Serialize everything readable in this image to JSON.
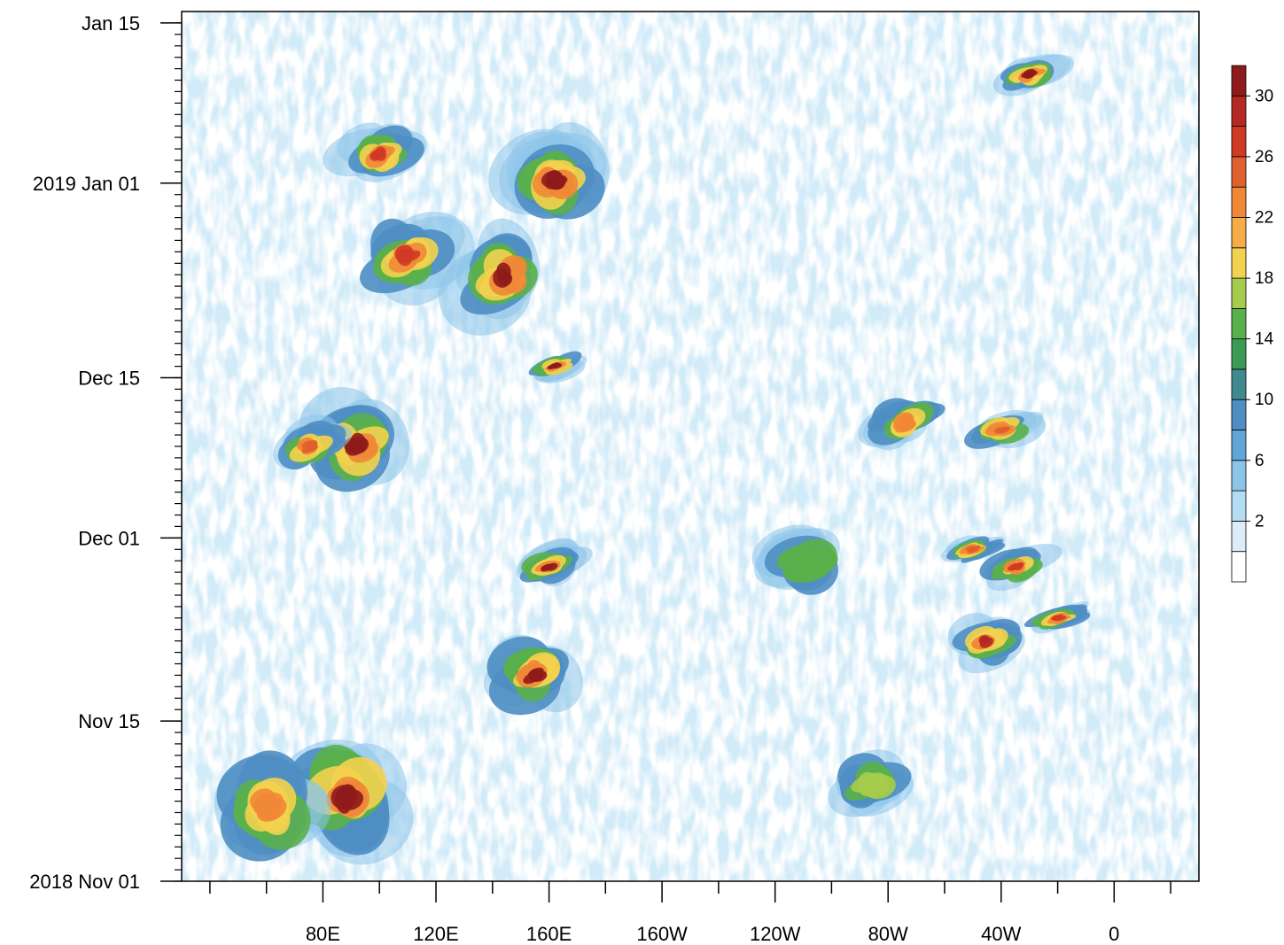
{
  "chart_data": {
    "type": "heatmap",
    "title": "",
    "xlabel": "",
    "ylabel": "",
    "x_ticks": [
      "80E",
      "120E",
      "160E",
      "160W",
      "120W",
      "80W",
      "40W",
      "0"
    ],
    "y_ticks": [
      "2018 Nov 01",
      "Nov 15",
      "Dec 01",
      "Dec 15",
      "2019 Jan 01",
      "Jan 15"
    ],
    "colorbar": {
      "labels": [
        "2",
        "6",
        "10",
        "14",
        "18",
        "22",
        "26",
        "30"
      ],
      "levels": [
        0,
        2,
        4,
        6,
        8,
        10,
        12,
        14,
        16,
        18,
        20,
        22,
        24,
        26,
        28,
        30,
        32
      ],
      "colors": [
        "#ffffff",
        "#dcedf8",
        "#b4dcf2",
        "#8cc5e9",
        "#62a6d8",
        "#4f8ec3",
        "#3f8a8f",
        "#3c9a57",
        "#5ab04a",
        "#a6cc4e",
        "#f3d24f",
        "#f5ad45",
        "#ef8837",
        "#e0602e",
        "#cf3a25",
        "#b22a23",
        "#8e1b1b"
      ]
    },
    "bands": [
      {
        "lon": 88,
        "dates": "2018-11-03 to 2018-11-14",
        "peak": 32
      },
      {
        "lon": 92,
        "dates": "2018-12-05 to 2018-12-13",
        "peak": 32
      },
      {
        "lon": 155,
        "dates": "2018-11-16 to 2018-11-22",
        "peak": 32
      },
      {
        "lon": 160,
        "dates": "2018-11-27 to 2018-11-30",
        "peak": 32
      },
      {
        "lon": 162,
        "dates": "2018-12-15 to 2018-12-17",
        "peak": 32
      },
      {
        "lon": 145,
        "dates": "2018-12-20 to 2018-12-28",
        "peak": 32
      },
      {
        "lon": 162,
        "dates": "2018-12-28 to 2019-01-05",
        "peak": 32
      },
      {
        "lon": -30,
        "dates": "2019-01-09 to 2019-01-12",
        "peak": 32
      },
      {
        "lon": -45,
        "dates": "2018-11-20 to 2018-11-24",
        "peak": 30
      },
      {
        "lon": -35,
        "dates": "2018-11-27 to 2018-11-30",
        "peak": 28
      },
      {
        "lon": -50,
        "dates": "2018-11-29 to 2018-12-01",
        "peak": 26
      },
      {
        "lon": -20,
        "dates": "2018-11-23 to 2018-11-25",
        "peak": 28
      },
      {
        "lon": -75,
        "dates": "2018-12-09 to 2018-12-13",
        "peak": 24
      },
      {
        "lon": -40,
        "dates": "2018-12-09 to 2018-12-12",
        "peak": 26
      },
      {
        "lon": 110,
        "dates": "2018-12-22 to 2018-12-29",
        "peak": 28
      },
      {
        "lon": 100,
        "dates": "2019-01-01 to 2019-01-06",
        "peak": 28
      },
      {
        "lon": 60,
        "dates": "2018-11-03 to 2018-11-12",
        "peak": 24
      },
      {
        "lon": 75,
        "dates": "2018-12-07 to 2018-12-11",
        "peak": 26
      },
      {
        "lon": -110,
        "dates": "2018-11-26 to 2018-12-02",
        "peak": 16
      },
      {
        "lon": -85,
        "dates": "2018-11-07 to 2018-11-12",
        "peak": 18
      }
    ]
  }
}
